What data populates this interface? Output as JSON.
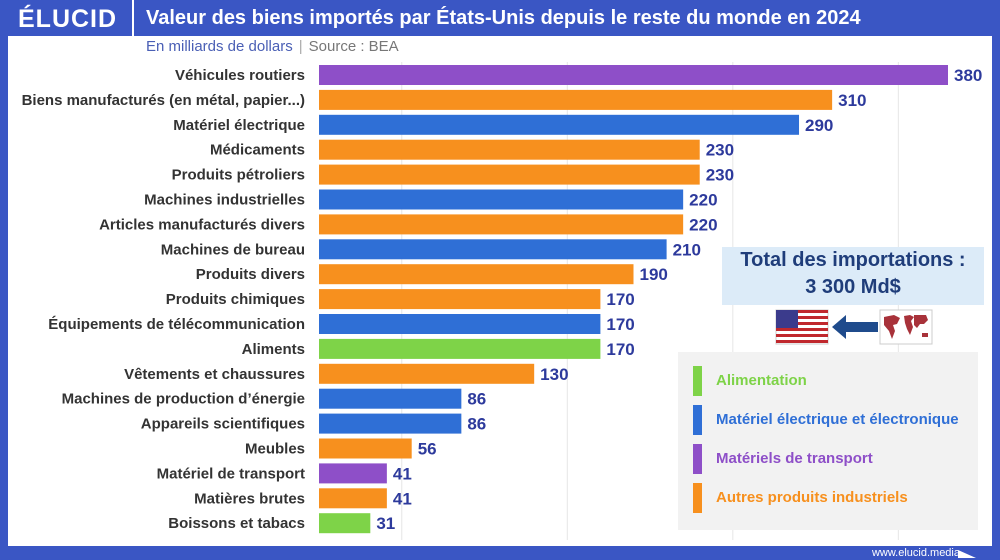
{
  "header": {
    "logo": "ÉLUCID",
    "title": "Valeur des biens importés par États-Unis depuis le reste du monde en 2024"
  },
  "subtitle": {
    "unit": "En milliards de dollars",
    "separator": "|",
    "source": "Source : BEA"
  },
  "total": {
    "line1": "Total des importations :",
    "line2": "3 300 Md$",
    "flag_from": "world-map-icon",
    "flag_to": "us-flag-icon",
    "arrow": "arrow-left-icon"
  },
  "colors": {
    "Alimentation": "#7ed348",
    "Matériel électrique et électronique": "#2f6fd6",
    "Matériels de transport": "#8e4fc8",
    "Autres produits industriels": "#f7901e",
    "values": "#2d3a9c",
    "frame": "#3a56c4"
  },
  "legend": [
    "Alimentation",
    "Matériel électrique et électronique",
    "Matériels de transport",
    "Autres produits industriels"
  ],
  "footer": "www.elucid.media",
  "chart_data": {
    "type": "bar",
    "orientation": "horizontal",
    "xlim": [
      0,
      380
    ],
    "grid": true,
    "categories": [
      "Véhicules routiers",
      "Biens manufacturés (en métal, papier...)",
      "Matériel électrique",
      "Médicaments",
      "Produits pétroliers",
      "Machines industrielles",
      "Articles manufacturés divers",
      "Machines de bureau",
      "Produits divers",
      "Produits chimiques",
      "Équipements de télécommunication",
      "Aliments",
      "Vêtements et chaussures",
      "Machines de production d’énergie",
      "Appareils scientifiques",
      "Meubles",
      "Matériel de transport",
      "Matières brutes",
      "Boissons et tabacs"
    ],
    "values": [
      380,
      310,
      290,
      230,
      230,
      220,
      220,
      210,
      190,
      170,
      170,
      170,
      130,
      86,
      86,
      56,
      41,
      41,
      31
    ],
    "groups": [
      "Matériels de transport",
      "Autres produits industriels",
      "Matériel électrique et électronique",
      "Autres produits industriels",
      "Autres produits industriels",
      "Matériel électrique et électronique",
      "Autres produits industriels",
      "Matériel électrique et électronique",
      "Autres produits industriels",
      "Autres produits industriels",
      "Matériel électrique et électronique",
      "Alimentation",
      "Autres produits industriels",
      "Matériel électrique et électronique",
      "Matériel électrique et électronique",
      "Autres produits industriels",
      "Matériels de transport",
      "Autres produits industriels",
      "Alimentation"
    ]
  }
}
